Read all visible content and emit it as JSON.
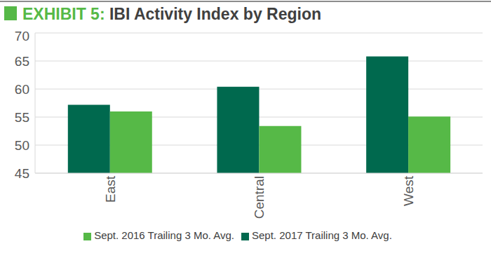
{
  "chart_data": {
    "type": "bar",
    "title": "EXHIBIT 5: IBI Activity Index by Region",
    "categories": [
      "East",
      "Central",
      "West"
    ],
    "series": [
      {
        "name": "Sept. 2017 Trailing 3 Mo. Avg.",
        "color": "#00694e",
        "values": [
          57.2,
          60.4,
          65.8
        ]
      },
      {
        "name": "Sept. 2016 Trailing 3 Mo. Avg.",
        "color": "#56b947",
        "values": [
          56,
          53.4,
          55.1
        ]
      }
    ],
    "ylim": [
      45,
      70
    ],
    "yticks": [
      45,
      50,
      55,
      60,
      65,
      70
    ],
    "grid": true,
    "legend": "bottom"
  }
}
